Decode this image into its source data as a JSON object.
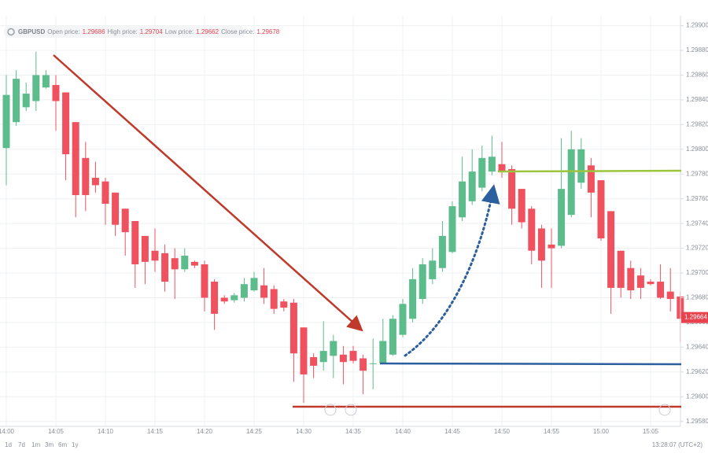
{
  "header": {
    "symbol": "GBPUSD",
    "fields": [
      {
        "label": "Open price:",
        "value": 1.29686
      },
      {
        "label": "High price:",
        "value": 1.29704
      },
      {
        "label": "Low price:",
        "value": 1.29662
      },
      {
        "label": "Close price:",
        "value": 1.29678
      }
    ]
  },
  "footer": {
    "ranges": [
      "1d",
      "7d",
      "1m",
      "3m",
      "6m",
      "1y"
    ],
    "clock": "13:28:07 (UTC+2)"
  },
  "chart_data": {
    "type": "candlestick",
    "categories": [
      "14:00",
      null,
      null,
      null,
      null,
      "14:05",
      null,
      null,
      null,
      null,
      "14:10",
      null,
      null,
      null,
      null,
      "14:15",
      null,
      null,
      null,
      null,
      "14:20",
      null,
      null,
      null,
      null,
      "14:25",
      null,
      null,
      null,
      null,
      "14:30",
      null,
      null,
      null,
      null,
      "14:35",
      null,
      null,
      null,
      null,
      "14:40",
      null,
      null,
      null,
      null,
      "14:45",
      null,
      null,
      null,
      null,
      "14:50",
      null,
      null,
      null,
      null,
      "14:55",
      null,
      null,
      null,
      null,
      "15:00",
      null,
      null,
      null,
      null,
      "15:05",
      null,
      null,
      null
    ],
    "open": [
      1.29801,
      1.29822,
      1.29834,
      1.29839,
      1.2985,
      1.29852,
      1.29846,
      1.29822,
      1.29793,
      1.29777,
      1.29774,
      1.29765,
      1.29752,
      1.29742,
      1.2973,
      1.29718,
      1.29716,
      1.29712,
      1.29703,
      1.29709,
      1.29707,
      1.29693,
      1.2968,
      1.29678,
      1.2968,
      1.29686,
      1.2969,
      1.29687,
      1.29677,
      1.29676,
      1.29656,
      1.29632,
      1.29628,
      1.29633,
      1.29634,
      1.29637,
      1.29631,
      1.29627,
      1.29627,
      1.29634,
      1.2965,
      1.29663,
      1.29679,
      1.29695,
      1.29704,
      1.29717,
      1.29745,
      1.29758,
      1.29769,
      1.29782,
      1.29788,
      1.29784,
      1.29768,
      1.29752,
      1.29736,
      1.29723,
      1.29722,
      1.29747,
      1.29773,
      1.29787,
      1.29775,
      1.2975,
      1.29718,
      1.29704,
      1.29698,
      1.29693,
      1.29693,
      1.29685,
      1.29681
    ],
    "high": [
      1.2986,
      1.29864,
      1.29854,
      1.29879,
      1.29864,
      1.2986,
      1.29846,
      1.29822,
      1.29806,
      1.2979,
      1.29777,
      1.29765,
      1.29752,
      1.29742,
      1.2973,
      1.29736,
      1.29723,
      1.2972,
      1.2972,
      1.2971,
      1.2971,
      1.29695,
      1.29682,
      1.29684,
      1.29696,
      1.29701,
      1.29704,
      1.2969,
      1.29679,
      1.29679,
      1.29656,
      1.29635,
      1.29661,
      1.2965,
      1.29641,
      1.29641,
      1.29634,
      1.29647,
      1.29663,
      1.29666,
      1.29679,
      1.29704,
      1.29712,
      1.2972,
      1.29742,
      1.29758,
      1.29794,
      1.298,
      1.29803,
      1.29811,
      1.29806,
      1.29787,
      1.29768,
      1.29754,
      1.29739,
      1.29736,
      1.29809,
      1.29815,
      1.29809,
      1.29793,
      1.29775,
      1.2975,
      1.29718,
      1.2971,
      1.29704,
      1.29695,
      1.29707,
      1.29704,
      1.29685
    ],
    "low": [
      1.29771,
      1.29819,
      1.29831,
      1.29831,
      1.29849,
      1.29815,
      1.29775,
      1.29745,
      1.2975,
      1.29765,
      1.29739,
      1.2973,
      1.29714,
      1.29688,
      1.29691,
      1.29701,
      1.29685,
      1.29679,
      1.29701,
      1.29704,
      1.29669,
      1.29654,
      1.29675,
      1.29676,
      1.29677,
      1.29685,
      1.29675,
      1.29667,
      1.29669,
      1.29612,
      1.29595,
      1.29615,
      1.29621,
      1.29615,
      1.2961,
      1.29627,
      1.29602,
      1.29606,
      1.29627,
      1.29633,
      1.29648,
      1.2966,
      1.29675,
      1.29691,
      1.29701,
      1.29716,
      1.29742,
      1.29755,
      1.29766,
      1.29779,
      1.29777,
      1.29739,
      1.29736,
      1.29707,
      1.29688,
      1.29688,
      1.2972,
      1.29745,
      1.29768,
      1.29745,
      1.29726,
      1.29667,
      1.2968,
      1.29679,
      1.29679,
      1.2969,
      1.29679,
      1.29669,
      1.29644
    ],
    "close": [
      1.29844,
      1.29857,
      1.29845,
      1.2986,
      1.2986,
      1.29839,
      1.29796,
      1.29763,
      1.29763,
      1.29771,
      1.29756,
      1.29739,
      1.29733,
      1.29707,
      1.29709,
      1.2971,
      1.29693,
      1.29703,
      1.29714,
      1.29706,
      1.2968,
      1.29667,
      1.29677,
      1.29682,
      1.29691,
      1.29696,
      1.2968,
      1.29671,
      1.29672,
      1.29635,
      1.29618,
      1.29625,
      1.29637,
      1.29645,
      1.29628,
      1.29629,
      1.29621,
      1.29627,
      1.29645,
      1.29663,
      1.29675,
      1.29695,
      1.29707,
      1.2971,
      1.2973,
      1.29754,
      1.29774,
      1.29782,
      1.29793,
      1.29794,
      1.29782,
      1.29752,
      1.29741,
      1.29718,
      1.2971,
      1.2972,
      1.29768,
      1.298,
      1.298,
      1.29765,
      1.29728,
      1.29688,
      1.29688,
      1.29686,
      1.29688,
      1.29691,
      1.2968,
      1.29679,
      1.29663
    ],
    "up_color": "#5cbc8c",
    "down_color": "#f0515f",
    "ylim": [
      1.29576,
      1.29908
    ],
    "yticks": [
      {
        "value": 1.299,
        "label": "1.29900"
      },
      {
        "value": 1.2988,
        "label": "1.29880"
      },
      {
        "value": 1.2986,
        "label": "1.29860"
      },
      {
        "value": 1.2984,
        "label": "1.29840"
      },
      {
        "value": 1.2982,
        "label": "1.29820"
      },
      {
        "value": 1.298,
        "label": "1.29800"
      },
      {
        "value": 1.2978,
        "label": "1.29780"
      },
      {
        "value": 1.2976,
        "label": "1.29760"
      },
      {
        "value": 1.2974,
        "label": "1.29740"
      },
      {
        "value": 1.2972,
        "label": "1.29720"
      },
      {
        "value": 1.297,
        "label": "1.29700"
      },
      {
        "value": 1.2968,
        "label": "1.29680"
      },
      {
        "value": 1.2966,
        "label": "1.29660"
      },
      {
        "value": 1.2964,
        "label": "1.29640"
      },
      {
        "value": 1.2962,
        "label": "1.29620"
      },
      {
        "value": 1.296,
        "label": "1.29600"
      },
      {
        "value": 1.2958,
        "label": "1.29580"
      }
    ],
    "last_price": 1.29664,
    "last_price_color": "#e8424f",
    "grid": true
  }
}
